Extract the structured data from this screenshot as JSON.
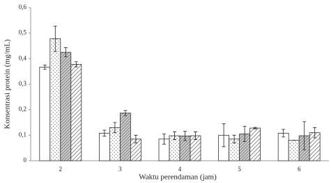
{
  "chart_data": {
    "type": "bar",
    "y_label": "Konsentrasi protein (mg/mL)",
    "x_label": "Waktu perendaman (jam)",
    "categories": [
      "2",
      "3",
      "4",
      "5",
      "6"
    ],
    "series": [
      {
        "color": "#ffffff",
        "pattern": "none",
        "values": [
          0.367,
          0.108,
          0.085,
          0.1,
          0.108
        ],
        "errors": [
          0.008,
          0.012,
          0.02,
          0.045,
          0.015
        ]
      },
      {
        "color": "#ffffff",
        "pattern": "dots",
        "values": [
          0.478,
          0.13,
          0.098,
          0.085,
          0.08
        ],
        "errors": [
          0.05,
          0.02,
          0.015,
          0.015,
          0
        ]
      },
      {
        "color": "#ffffff",
        "pattern": "hatch-dense",
        "values": [
          0.425,
          0.187,
          0.097,
          0.105,
          0.098
        ],
        "errors": [
          0.018,
          0.01,
          0.018,
          0.03,
          0.055
        ]
      },
      {
        "color": "#ffffff",
        "pattern": "hatch",
        "values": [
          0.378,
          0.085,
          0.098,
          0.128,
          0.11
        ],
        "errors": [
          0.01,
          0.015,
          0.015,
          0.003,
          0.02
        ]
      }
    ],
    "ylim": [
      0,
      0.6
    ],
    "yticks": [
      0,
      {
        "value": 0.1,
        "label": "0,1"
      },
      {
        "value": 0.2,
        "label": "0,2"
      },
      {
        "value": 0.3,
        "label": "0,3"
      },
      {
        "value": 0.4,
        "label": "0,4"
      },
      {
        "value": 0.5,
        "label": "0,5"
      },
      {
        "value": 0.6,
        "label": "0,6"
      }
    ],
    "grid": false
  }
}
